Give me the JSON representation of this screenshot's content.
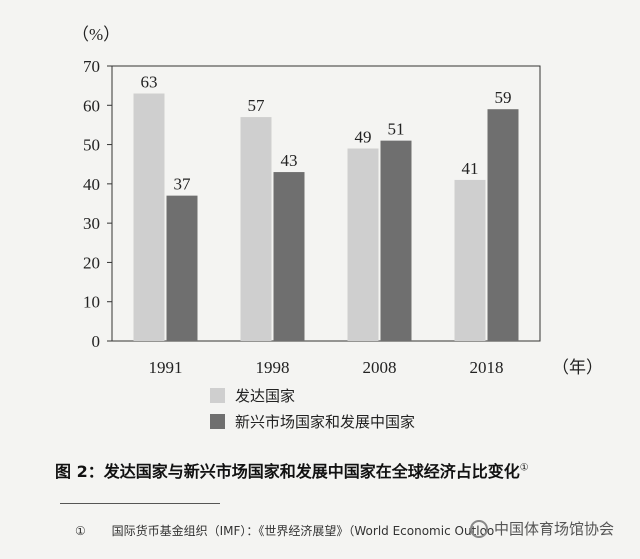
{
  "chart_data": {
    "type": "bar",
    "y_unit": "（%）",
    "x_unit": "（年）",
    "categories": [
      "1991",
      "1998",
      "2008",
      "2018"
    ],
    "ylim": [
      0,
      70
    ],
    "yticks": [
      0,
      10,
      20,
      30,
      40,
      50,
      60,
      70
    ],
    "grid": false,
    "legend_placement": "bottom",
    "series": [
      {
        "name": "发达国家",
        "values": [
          63,
          57,
          49,
          41
        ],
        "color": "#cfcfcf"
      },
      {
        "name": "新兴市场国家和发展中国家",
        "values": [
          37,
          43,
          51,
          59
        ],
        "color": "#6f6f6f"
      }
    ]
  },
  "caption": {
    "text": "图 2：发达国家与新兴市场国家和发展中国家在全球经济占比变化",
    "note_mark": "①"
  },
  "footnote": {
    "mark": "①",
    "text": "国际货币基金组织（IMF）：《世界经济展望》（World Economic Outloo"
  },
  "watermark": {
    "text": "中国体育场馆协会",
    "icon": "wechat-icon"
  }
}
